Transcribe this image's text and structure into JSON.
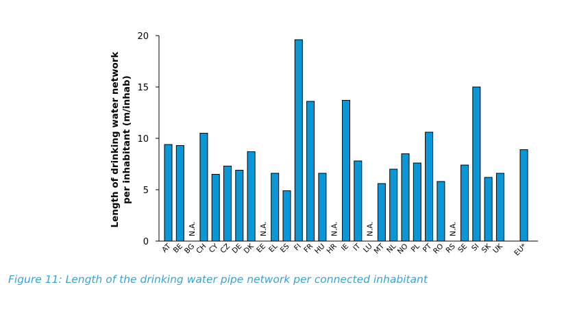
{
  "caption": "Figure 11: Length of the drinking water pipe network per connected inhabitant",
  "colors": {
    "bar": "#0b96d6",
    "caption": "#3aa2d3",
    "axis": "#000000"
  },
  "chart_data": {
    "type": "bar",
    "ylabel": "Length of drinking water network per inhabitant (m/inhab)",
    "ylabel_lines": [
      "Length of drinking water network",
      "per inhabitant (m/inhab)"
    ],
    "ylim": [
      0,
      20
    ],
    "yticks": [
      0,
      5,
      10,
      15,
      20
    ],
    "grid": false,
    "na_label": "N.A.",
    "categories": [
      "AT",
      "BE",
      "BG",
      "CH",
      "CY",
      "CZ",
      "DE",
      "DK",
      "EE",
      "EL",
      "ES",
      "FI",
      "FR",
      "HU",
      "HR",
      "IE",
      "IT",
      "LU",
      "MT",
      "NL",
      "NO",
      "PL",
      "PT",
      "RO",
      "RS",
      "SE",
      "SI",
      "SK",
      "UK",
      "EU*"
    ],
    "values": [
      9.4,
      9.3,
      null,
      10.5,
      6.5,
      7.3,
      6.9,
      8.7,
      null,
      6.6,
      4.9,
      19.6,
      13.6,
      6.6,
      null,
      13.7,
      7.8,
      null,
      5.6,
      7.0,
      8.5,
      7.6,
      10.6,
      5.8,
      null,
      7.4,
      15.0,
      6.2,
      6.6,
      8.9
    ]
  }
}
